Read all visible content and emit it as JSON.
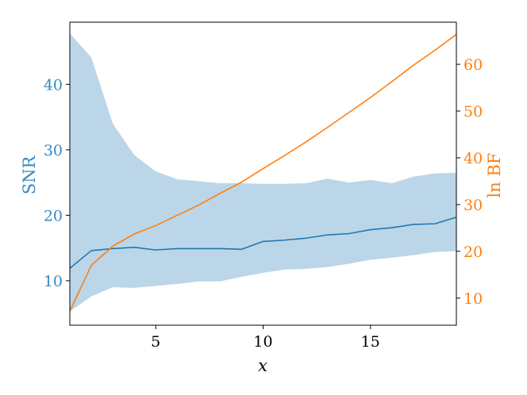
{
  "chart_data": {
    "type": "line",
    "x": [
      1,
      2,
      3,
      4,
      5,
      6,
      7,
      8,
      9,
      10,
      11,
      12,
      13,
      14,
      15,
      16,
      17,
      18,
      19
    ],
    "xlabel": "x",
    "xlim": [
      1,
      19
    ],
    "xticks": [
      5,
      10,
      15
    ],
    "grid": false,
    "legend": "none",
    "left_axis": {
      "label": "SNR",
      "color": "#3a87c0",
      "ylim": [
        3.2,
        49.5
      ],
      "ticks": [
        10,
        20,
        30,
        40
      ]
    },
    "right_axis": {
      "label": "ln BF",
      "color": "#ff7f0e",
      "ylim": [
        4.2,
        69.0
      ],
      "ticks": [
        10,
        20,
        30,
        40,
        50,
        60
      ]
    },
    "series": [
      {
        "axis": "left",
        "kind": "band",
        "color": "#1f77b4",
        "opacity": 0.3,
        "lower": [
          5.3,
          7.6,
          9.0,
          8.9,
          9.2,
          9.5,
          9.9,
          9.9,
          10.6,
          11.2,
          11.7,
          11.8,
          12.1,
          12.6,
          13.2,
          13.5,
          13.9,
          14.4,
          14.5
        ],
        "upper": [
          47.8,
          44.1,
          34.0,
          29.2,
          26.7,
          25.5,
          25.2,
          24.9,
          24.9,
          24.8,
          24.8,
          24.9,
          25.6,
          25.0,
          25.4,
          24.9,
          25.9,
          26.4,
          26.5
        ]
      },
      {
        "axis": "left",
        "kind": "line",
        "color": "#1f77b4",
        "values": [
          11.9,
          14.6,
          14.9,
          15.1,
          14.7,
          14.9,
          14.9,
          14.9,
          14.8,
          16.0,
          16.2,
          16.5,
          17.0,
          17.2,
          17.8,
          18.1,
          18.6,
          18.7,
          19.7
        ]
      },
      {
        "axis": "right",
        "kind": "line",
        "color": "#ff7f0e",
        "values": [
          7.2,
          17.0,
          21.1,
          23.7,
          25.5,
          27.7,
          29.9,
          32.4,
          34.8,
          37.7,
          40.5,
          43.4,
          46.5,
          49.7,
          52.9,
          56.3,
          59.8,
          63.0,
          66.4
        ]
      }
    ]
  }
}
